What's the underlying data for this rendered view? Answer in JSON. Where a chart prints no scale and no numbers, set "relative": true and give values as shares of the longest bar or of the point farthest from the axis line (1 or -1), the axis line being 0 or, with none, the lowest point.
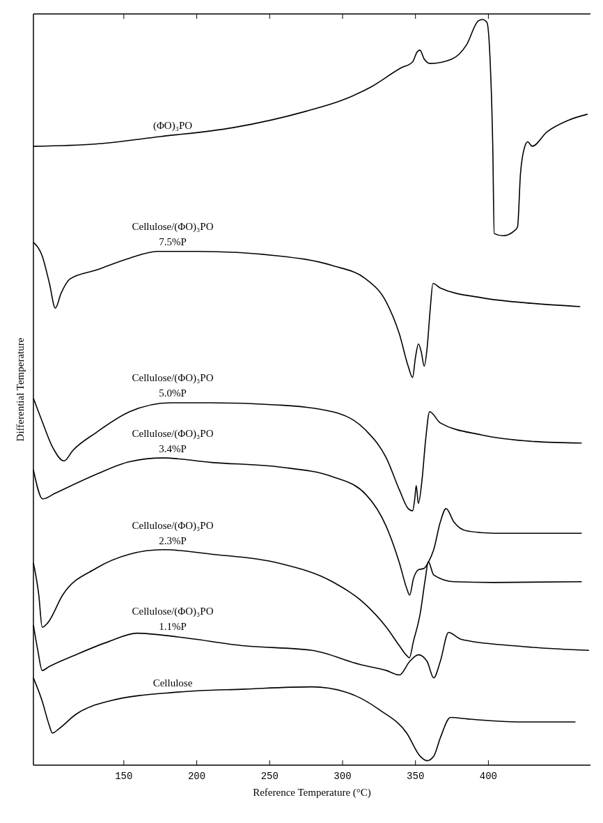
{
  "chart_data": {
    "type": "line",
    "relative": true,
    "xlabel": "Reference Temperature (°C)",
    "ylabel": "Differential Temperature",
    "xlim": [
      88,
      470
    ],
    "xticks": [
      150,
      200,
      250,
      300,
      350,
      400
    ],
    "tick_labels": "x",
    "marker": "none",
    "line_style": "solid",
    "series": [
      {
        "name": "(ΦO)₃PO",
        "color": "#000000",
        "x": [
          88,
          130,
          175,
          225,
          275,
          300,
          320,
          340,
          348,
          351,
          353,
          356,
          360,
          375,
          385,
          393,
          396,
          399,
          401,
          403,
          404,
          410,
          418,
          420,
          422,
          425,
          427,
          430,
          440,
          455,
          468
        ],
        "values": [
          0.83,
          0.833,
          0.843,
          0.855,
          0.877,
          0.892,
          0.91,
          0.935,
          0.943,
          0.956,
          0.959,
          0.947,
          0.941,
          0.947,
          0.966,
          0.998,
          1,
          0.996,
          0.953,
          0.83,
          0.713,
          0.71,
          0.717,
          0.722,
          0.793,
          0.83,
          0.836,
          0.83,
          0.849,
          0.865,
          0.873
        ]
      },
      {
        "name": "Cellulose/(ΦO)₃PO 7.5%P",
        "color": "#000000",
        "x": [
          88,
          94,
          99,
          103,
          107,
          113,
          131,
          154,
          173,
          200,
          256,
          293,
          316,
          330,
          339,
          345,
          348,
          350,
          352,
          354,
          356,
          358,
          360,
          362,
          367,
          395,
          432,
          463
        ],
        "values": [
          0.701,
          0.683,
          0.646,
          0.613,
          0.633,
          0.652,
          0.664,
          0.68,
          0.689,
          0.689,
          0.683,
          0.67,
          0.652,
          0.621,
          0.578,
          0.535,
          0.52,
          0.547,
          0.565,
          0.554,
          0.535,
          0.56,
          0.609,
          0.646,
          0.64,
          0.627,
          0.619,
          0.615
        ]
      },
      {
        "name": "Cellulose/(ΦO)₃PO 5.0%P",
        "color": "#000000",
        "x": [
          88,
          94,
          101,
          109,
          115,
          131,
          154,
          182,
          210,
          256,
          293,
          316,
          330,
          339,
          345,
          348,
          349.5,
          350.5,
          352,
          354.4,
          357,
          359.7,
          367,
          395,
          432,
          464
        ],
        "values": [
          0.492,
          0.461,
          0.427,
          0.408,
          0.422,
          0.446,
          0.474,
          0.486,
          0.486,
          0.483,
          0.474,
          0.449,
          0.412,
          0.369,
          0.344,
          0.341,
          0.357,
          0.375,
          0.351,
          0.381,
          0.437,
          0.474,
          0.459,
          0.443,
          0.434,
          0.432
        ]
      },
      {
        "name": "Cellulose/(ΦO)₃PO 3.4%P",
        "color": "#000000",
        "x": [
          88,
          94.4,
          103.2,
          131,
          154,
          177,
          210,
          256,
          293,
          316,
          330,
          339,
          344,
          346,
          348.6,
          352,
          356,
          358.5,
          362.5,
          367,
          371,
          376.4,
          385.6,
          404,
          464
        ],
        "values": [
          0.396,
          0.357,
          0.365,
          0.39,
          0.407,
          0.412,
          0.406,
          0.4,
          0.387,
          0.363,
          0.32,
          0.271,
          0.237,
          0.228,
          0.25,
          0.262,
          0.264,
          0.271,
          0.289,
          0.326,
          0.344,
          0.326,
          0.314,
          0.311,
          0.311
        ]
      },
      {
        "name": "Cellulose/(ΦO)₃PO 2.3%P",
        "color": "#000000",
        "x": [
          88,
          91.7,
          94,
          97.9,
          108,
          131,
          154,
          177,
          210,
          256,
          293,
          316,
          330,
          339,
          343.5,
          345.8,
          348.6,
          353.2,
          356.9,
          358.8,
          362.5,
          376.4,
          404,
          464
        ],
        "values": [
          0.271,
          0.228,
          0.185,
          0.191,
          0.228,
          0.264,
          0.283,
          0.289,
          0.283,
          0.271,
          0.246,
          0.215,
          0.185,
          0.16,
          0.148,
          0.144,
          0.166,
          0.203,
          0.252,
          0.273,
          0.255,
          0.246,
          0.245,
          0.246
        ]
      },
      {
        "name": "Cellulose/(ΦO)₃PO 1.1%P",
        "color": "#000000",
        "x": [
          88,
          91,
          94,
          98.6,
          117,
          140,
          159,
          187,
          233,
          279,
          312,
          330,
          339,
          346,
          352,
          358,
          362.5,
          367,
          372.7,
          381,
          418,
          469
        ],
        "values": [
          0.188,
          0.154,
          0.127,
          0.132,
          0.148,
          0.166,
          0.177,
          0.172,
          0.16,
          0.154,
          0.135,
          0.127,
          0.121,
          0.139,
          0.148,
          0.139,
          0.117,
          0.139,
          0.178,
          0.169,
          0.16,
          0.154
        ]
      },
      {
        "name": "Cellulose",
        "color": "#000000",
        "x": [
          88,
          94,
          98.6,
          101,
          105.6,
          117,
          140,
          187,
          233,
          279,
          302.3,
          325.5,
          344,
          353.2,
          357.9,
          362.5,
          367.1,
          374,
          385.6,
          422.7,
          459.7
        ],
        "values": [
          0.117,
          0.086,
          0.055,
          0.043,
          0.049,
          0.068,
          0.086,
          0.098,
          0.102,
          0.105,
          0.098,
          0.074,
          0.043,
          0.012,
          0.006,
          0.012,
          0.037,
          0.064,
          0.062,
          0.058,
          0.058
        ]
      }
    ]
  }
}
